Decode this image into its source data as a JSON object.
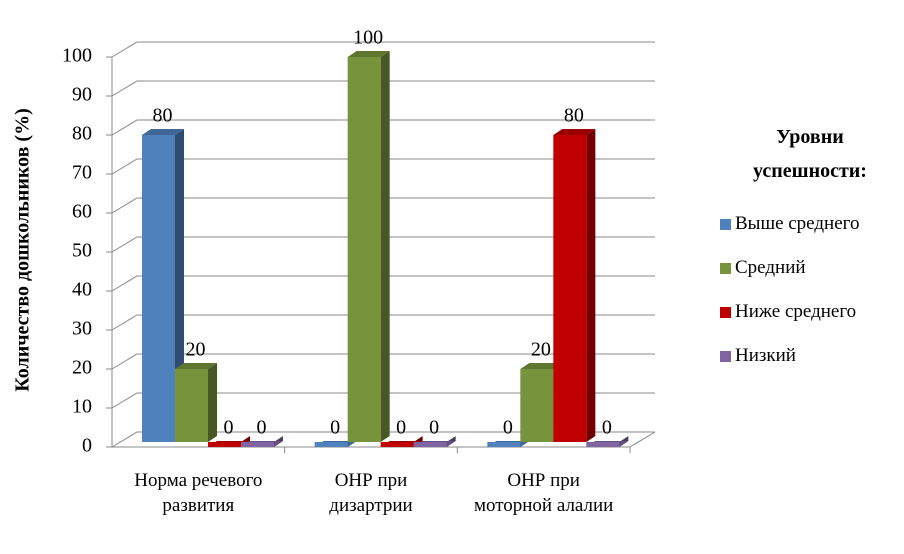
{
  "chart_data": {
    "type": "bar3d",
    "y_label": "Количество дошкольников (%)",
    "categories": [
      "Норма речевого развития",
      "ОНР при дизартрии",
      "ОНР при моторной алалии"
    ],
    "series": [
      {
        "name": "Выше среднего",
        "color": "#4f81bd",
        "values": [
          80,
          0,
          0
        ]
      },
      {
        "name": "Средний",
        "color": "#77933c",
        "values": [
          20,
          100,
          20
        ]
      },
      {
        "name": "Ниже среднего",
        "color": "#c00000",
        "values": [
          0,
          0,
          80
        ]
      },
      {
        "name": "Низкий",
        "color": "#8064a2",
        "values": [
          0,
          0,
          0
        ]
      }
    ],
    "ylim": [
      0,
      100
    ],
    "yticks": [
      0,
      10,
      20,
      30,
      40,
      50,
      60,
      70,
      80,
      90,
      100
    ],
    "grid": true,
    "legend": "right",
    "legend_title": "Уровни успешности:"
  }
}
